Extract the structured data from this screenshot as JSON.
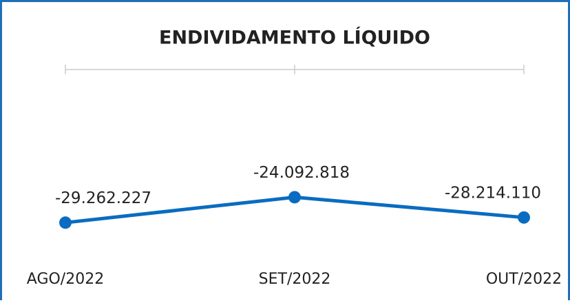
{
  "chart_data": {
    "type": "line",
    "title": "ENDIVIDAMENTO LÍQUIDO",
    "categories": [
      "AGO/2022",
      "SET/2022",
      "OUT/2022"
    ],
    "series": [
      {
        "name": "Endividamento Líquido",
        "color": "#0a6cc0",
        "values": [
          -29262227,
          -24092818,
          -28214110
        ],
        "value_labels": [
          "-29.262.227",
          "-24.092.818",
          "-28.214.110"
        ]
      }
    ],
    "ylim": [
      -40000000,
      2000000
    ]
  }
}
